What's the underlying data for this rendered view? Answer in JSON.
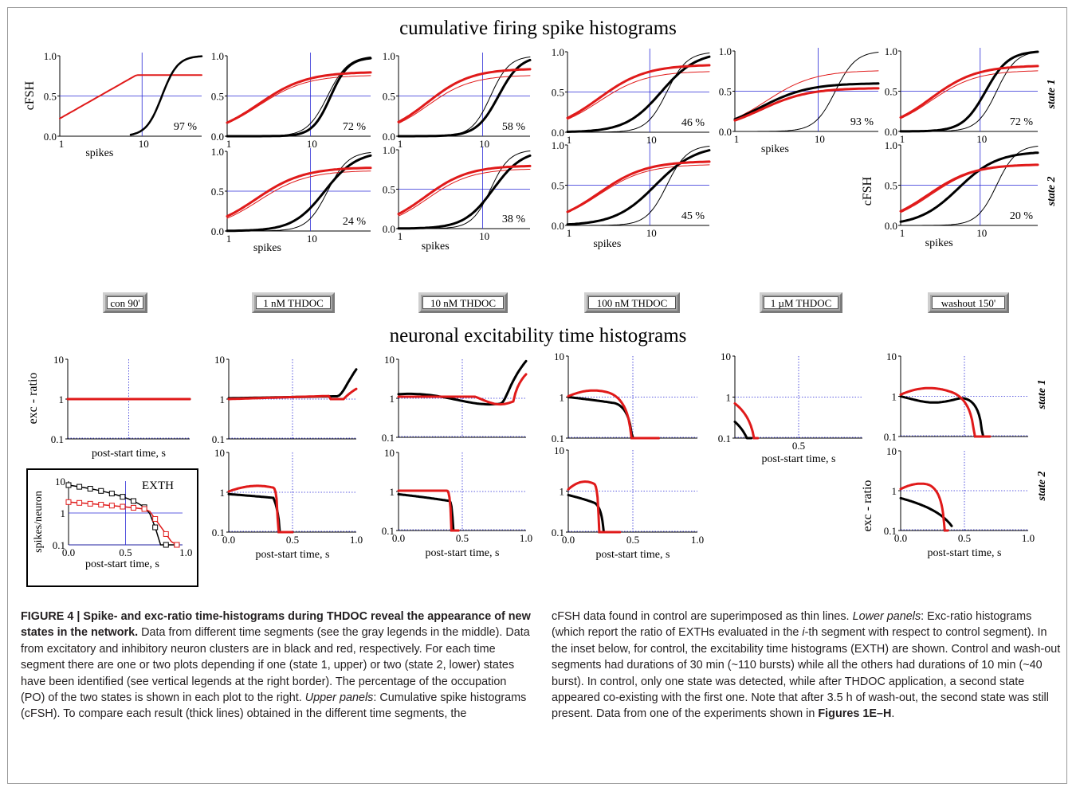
{
  "figure": {
    "top_title": "cumulative firing spike histograms",
    "bottom_title": "neuronal excitability time histograms",
    "segments": [
      "con 90'",
      "1 nM THDOC",
      "10 nM THDOC",
      "100 nM THDOC",
      "1 µM THDOC",
      "washout 150'"
    ],
    "state1_label": "state 1",
    "state2_label": "state 2",
    "cfsh_ylabel": "cFSH",
    "cfsh_xlabel": "spikes",
    "exc_ylabel": "exc - ratio",
    "exc_xlabel": "post-start time, s",
    "inset_title": "EXTH",
    "inset_ylabel": "spikes/neuron",
    "colors": {
      "excitatory": "#000000",
      "inhibitory": "#e01a1a",
      "guide": "#2a2ad6"
    }
  },
  "chart_data": [
    {
      "type": "line",
      "panel": "cFSH con 90' state 1",
      "xscale": "log",
      "x": [
        1,
        10
      ],
      "ylim": [
        0,
        1
      ],
      "po": "97 %"
    },
    {
      "type": "line",
      "panel": "cFSH 1 nM THDOC state 1",
      "xscale": "log",
      "ylim": [
        0,
        1
      ],
      "po": "72 %"
    },
    {
      "type": "line",
      "panel": "cFSH 1 nM THDOC state 2",
      "xscale": "log",
      "ylim": [
        0,
        1
      ],
      "po": "24 %"
    },
    {
      "type": "line",
      "panel": "cFSH 10 nM THDOC state 1",
      "xscale": "log",
      "ylim": [
        0,
        1
      ],
      "po": "58 %"
    },
    {
      "type": "line",
      "panel": "cFSH 10 nM THDOC state 2",
      "xscale": "log",
      "ylim": [
        0,
        1
      ],
      "po": "38 %"
    },
    {
      "type": "line",
      "panel": "cFSH 100 nM THDOC state 1",
      "xscale": "log",
      "ylim": [
        0,
        1
      ],
      "po": "46 %"
    },
    {
      "type": "line",
      "panel": "cFSH 100 nM THDOC state 2",
      "xscale": "log",
      "ylim": [
        0,
        1
      ],
      "po": "45 %"
    },
    {
      "type": "line",
      "panel": "cFSH 1 µM THDOC state 1",
      "xscale": "log",
      "ylim": [
        0,
        1
      ],
      "po": "93 %"
    },
    {
      "type": "line",
      "panel": "cFSH washout 150' state 1",
      "xscale": "log",
      "ylim": [
        0,
        1
      ],
      "po": "72 %"
    },
    {
      "type": "line",
      "panel": "cFSH washout 150' state 2",
      "xscale": "log",
      "ylim": [
        0,
        1
      ],
      "po": "20 %"
    },
    {
      "type": "line",
      "panel": "exc-ratio",
      "yscale": "log",
      "ylim": [
        0.1,
        10
      ],
      "xlim": [
        0,
        1
      ]
    },
    {
      "type": "line",
      "panel": "EXTH inset",
      "yscale": "log",
      "ylim": [
        0.1,
        10
      ],
      "xlim": [
        0,
        1
      ]
    }
  ],
  "ticks": {
    "cfsh_y": [
      "0.0",
      "0.5",
      "1.0"
    ],
    "cfsh_x": [
      "1",
      "10"
    ],
    "exc_y": [
      "10",
      "1",
      "0.1"
    ],
    "exc_x": [
      "0.0",
      "0.5",
      "1.0"
    ],
    "exc_x_short": [
      "0.5"
    ]
  },
  "caption": {
    "left_bold": "FIGURE 4 | Spike- and exc-ratio time-histograms during THDOC reveal the appearance of new states in the network.",
    "left_p1": " Data from different time segments (see the gray legends in the middle). Data from excitatory and inhibitory neuron clusters are in black and red, respectively. For each time segment there are one or two plots depending if one (state 1, upper) or two (state 2, lower) states have been identified (see vertical legends at the right border). The percentage of the occupation (PO) of the two states is shown in each plot to the right. ",
    "left_it": "Upper panels",
    "left_p2": ": Cumulative spike histograms (cFSH). To compare each result (thick lines) obtained in the different time segments, the",
    "right_p1": "cFSH data found in control are superimposed as thin lines. ",
    "right_it1": "Lower panels",
    "right_p2": ": Exc-ratio histograms (which report the ratio of EXTHs evaluated in the ",
    "right_it2": "i",
    "right_p3": "-th segment with respect to control segment). In the inset below, for control, the excitability time histograms (EXTH) are shown. Control and wash-out segments had durations of 30 min (~110 bursts) while all the others had durations of 10 min (~40 burst). In control, only one state was detected, while after THDOC application, a second state appeared co-existing with the first one. Note that after 3.5 h of wash-out, the second state was still present. Data from one of the experiments shown in ",
    "right_bold": "Figures 1E–H",
    "right_end": "."
  }
}
